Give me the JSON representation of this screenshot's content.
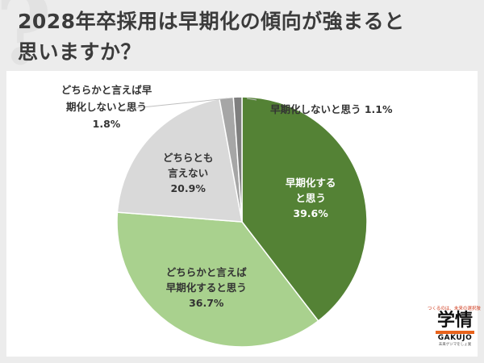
{
  "title": {
    "line1": "2028年卒採用は早期化の傾向が強まると",
    "line2": "思いますか？"
  },
  "chart_data": {
    "type": "pie",
    "slices": [
      {
        "label_lines": [
          "早期化する",
          "と思う"
        ],
        "value": 39.6,
        "value_label": "39.6%",
        "color": "#548235"
      },
      {
        "label_lines": [
          "どちらかと言えば",
          "早期化すると思う"
        ],
        "value": 36.7,
        "value_label": "36.7%",
        "color": "#a9d18e"
      },
      {
        "label_lines": [
          "どちらとも",
          "言えない"
        ],
        "value": 20.9,
        "value_label": "20.9%",
        "color": "#d9d9d9"
      },
      {
        "label_lines": [
          "どちらかと言えば早",
          "期化しないと思う"
        ],
        "value": 1.8,
        "value_label": "1.8%",
        "color": "#a6a6a6"
      },
      {
        "label_lines": [
          "早期化しないと思う"
        ],
        "value": 1.1,
        "value_label": "1.1%",
        "color": "#7f7f7f"
      }
    ],
    "start_angle_deg": 0,
    "direction": "clockwise",
    "legend": "none"
  },
  "logo": {
    "tagline": "つくるのは、未来の選択肢",
    "mark": "学情",
    "wordmark": "GAKUJO",
    "sub": "未来ゲジマをしょ業"
  },
  "colors": {
    "background": "#ececec",
    "card": "#ffffff",
    "label_light": "#ffffff",
    "label_dark": "#333333"
  }
}
